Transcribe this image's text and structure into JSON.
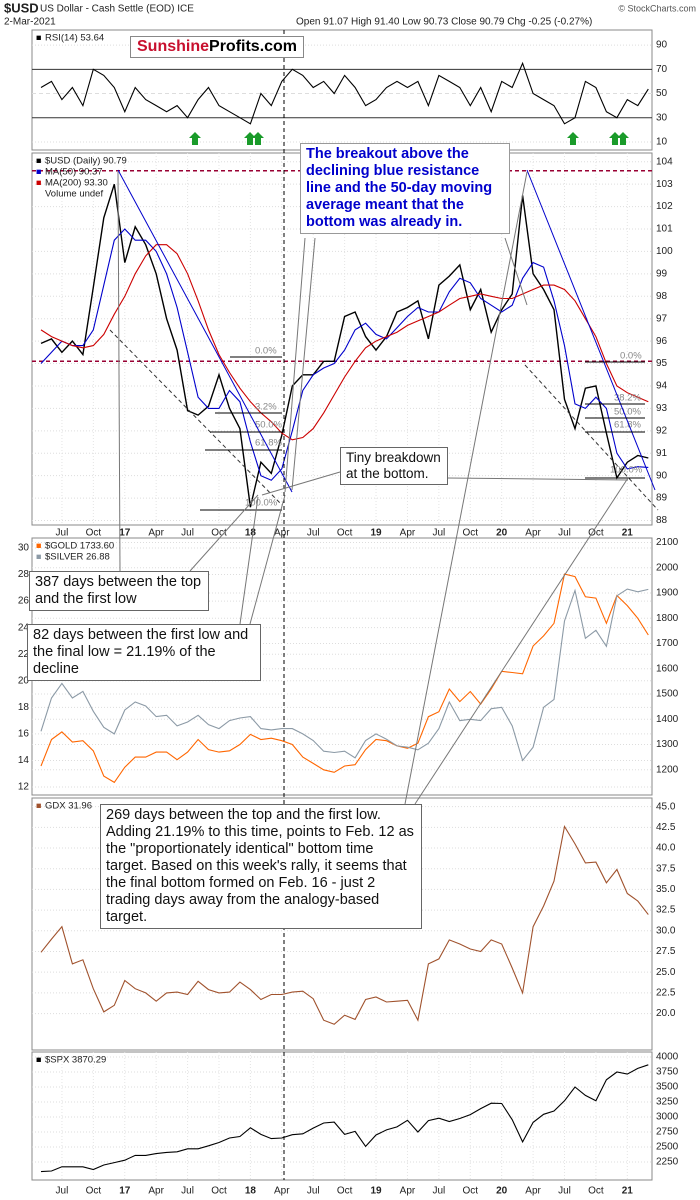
{
  "header": {
    "title": "$USD",
    "subtitle": "US Dollar - Cash Settle (EOD) ICE",
    "date": "2-Mar-2021",
    "quote": "Open 91.07 High 91.40 Low 90.73 Close 90.79 Chg -0.25 (-0.27%)",
    "source": "© StockCharts.com",
    "logo": [
      "Sunshine",
      "Profits.com"
    ]
  },
  "chart_data": [
    {
      "type": "line",
      "ylim": [
        5,
        100
      ],
      "yticks": [
        10,
        30,
        50,
        70,
        90
      ],
      "grid": true,
      "series": [
        {
          "name": "RSI(14) 53.64",
          "color": "#000000",
          "values": [
            55,
            60,
            45,
            55,
            40,
            70,
            65,
            55,
            35,
            55,
            45,
            40,
            35,
            40,
            30,
            45,
            55,
            40,
            35,
            30,
            25,
            50,
            40,
            60,
            70,
            65,
            55,
            60,
            50,
            65,
            55,
            40,
            45,
            55,
            60,
            55,
            60,
            40,
            65,
            60,
            55,
            40,
            55,
            35,
            60,
            55,
            75,
            50,
            45,
            40,
            25,
            30,
            60,
            55,
            35,
            30,
            45,
            40,
            53.64
          ]
        }
      ]
    },
    {
      "type": "line",
      "ylim": [
        87.8,
        104.3
      ],
      "yticks": [
        88,
        89,
        90,
        91,
        92,
        93,
        94,
        95,
        96,
        97,
        98,
        99,
        100,
        101,
        102,
        103,
        104
      ],
      "grid": true,
      "categories": [
        null,
        null,
        "Jul",
        null,
        null,
        "Oct",
        null,
        null,
        "17",
        null,
        null,
        "Apr",
        null,
        null,
        "Jul",
        null,
        null,
        "Oct",
        null,
        null,
        "18",
        null,
        null,
        "Apr",
        null,
        null,
        "Jul",
        null,
        null,
        "Oct",
        null,
        null,
        "19",
        null,
        null,
        "Apr",
        null,
        null,
        "Jul",
        null,
        null,
        "Oct",
        null,
        null,
        "20",
        null,
        null,
        "Apr",
        null,
        null,
        "Jul",
        null,
        null,
        "Oct",
        null,
        null,
        "21",
        null,
        null
      ],
      "legend_extra": "Volume undef",
      "reference_lines": [
        {
          "value": 103.6,
          "color": "#990033"
        },
        {
          "value": 95.1,
          "color": "#990033"
        }
      ],
      "fib_labels": [
        "0.0%",
        "3.2%",
        "50.0%",
        "61.8%",
        "100.0%",
        "0.0%",
        "38.2%",
        "50.0%",
        "61.8%",
        "100.0%"
      ],
      "series": [
        {
          "name": "$USD (Daily) 90.79",
          "color": "#000000",
          "values": [
            95.9,
            96.1,
            95.5,
            96.0,
            95.4,
            98.4,
            101.5,
            103.0,
            99.5,
            101.1,
            100.3,
            99.0,
            97.0,
            95.6,
            92.9,
            92.7,
            93.1,
            94.5,
            93.0,
            92.1,
            88.6,
            90.6,
            90.1,
            91.8,
            94.0,
            94.5,
            94.5,
            95.1,
            95.1,
            97.1,
            97.3,
            96.2,
            95.6,
            96.2,
            97.3,
            97.5,
            97.8,
            96.1,
            98.5,
            98.9,
            99.4,
            97.4,
            98.3,
            96.4,
            97.4,
            98.1,
            102.5,
            99.0,
            98.3,
            97.4,
            93.4,
            92.1,
            93.9,
            94.0,
            91.9,
            89.9,
            90.6,
            90.9,
            90.79
          ]
        },
        {
          "name": "MA(50) 90.37",
          "color": "#0000cc",
          "values": [
            95.0,
            95.5,
            96.0,
            95.8,
            95.8,
            96.5,
            98.5,
            100.5,
            101.0,
            100.5,
            100.5,
            100.0,
            99.0,
            97.5,
            95.5,
            93.5,
            93.0,
            93.0,
            93.8,
            93.3,
            91.5,
            90.0,
            89.8,
            90.3,
            92.0,
            93.8,
            94.5,
            94.8,
            95.0,
            95.6,
            96.5,
            96.8,
            96.3,
            96.1,
            96.6,
            97.1,
            97.5,
            97.3,
            97.3,
            98.2,
            98.8,
            98.6,
            97.9,
            97.6,
            97.3,
            97.6,
            98.8,
            99.5,
            99.3,
            97.8,
            95.8,
            93.2,
            93.0,
            93.5,
            93.0,
            91.0,
            90.3,
            90.4,
            90.37
          ]
        },
        {
          "name": "MA(200) 93.30",
          "color": "#cc0000",
          "values": [
            96.5,
            96.2,
            96.0,
            95.8,
            95.7,
            95.8,
            96.3,
            97.2,
            98.0,
            99.0,
            99.8,
            100.3,
            100.3,
            99.9,
            99.0,
            97.8,
            96.5,
            95.4,
            94.6,
            93.9,
            93.3,
            92.8,
            92.4,
            91.9,
            91.6,
            91.7,
            92.1,
            92.8,
            93.6,
            94.4,
            95.1,
            95.7,
            96.0,
            96.2,
            96.4,
            96.7,
            96.9,
            97.1,
            97.3,
            97.6,
            97.9,
            98.0,
            98.1,
            98.0,
            97.9,
            97.9,
            98.1,
            98.3,
            98.5,
            98.5,
            98.3,
            97.8,
            97.0,
            96.2,
            95.0,
            94.0,
            93.7,
            93.5,
            93.3
          ]
        }
      ]
    },
    {
      "type": "line",
      "ylim": [
        1100,
        2110
      ],
      "yticks": [
        1200,
        1300,
        1400,
        1500,
        1600,
        1700,
        1800,
        1900,
        2000,
        2100
      ],
      "y2lim": [
        11.4,
        30.6
      ],
      "y2ticks": [
        12,
        14,
        16,
        18,
        20,
        22,
        24,
        26,
        28,
        30
      ],
      "grid": true,
      "series": [
        {
          "name": "$GOLD 1733.60",
          "color": "#ff6600",
          "values": [
            1215,
            1320,
            1350,
            1310,
            1315,
            1275,
            1175,
            1150,
            1210,
            1250,
            1250,
            1270,
            1270,
            1240,
            1270,
            1320,
            1280,
            1270,
            1275,
            1300,
            1340,
            1320,
            1325,
            1315,
            1300,
            1250,
            1225,
            1200,
            1190,
            1215,
            1220,
            1280,
            1320,
            1315,
            1295,
            1285,
            1305,
            1410,
            1430,
            1520,
            1470,
            1510,
            1460,
            1520,
            1590,
            1585,
            1580,
            1690,
            1730,
            1780,
            1975,
            1965,
            1885,
            1880,
            1780,
            1890,
            1850,
            1800,
            1733.6
          ]
        },
        {
          "name": "$SILVER 26.88",
          "color": "#8c9aa6",
          "axis": "y2",
          "values": [
            16.2,
            18.7,
            19.8,
            18.7,
            19.2,
            17.7,
            16.5,
            16.0,
            17.8,
            18.4,
            18.1,
            17.3,
            17.4,
            16.6,
            16.9,
            17.4,
            16.7,
            16.4,
            17.0,
            17.2,
            17.3,
            16.4,
            16.3,
            16.4,
            16.4,
            16.0,
            15.5,
            14.7,
            14.6,
            14.7,
            14.2,
            15.5,
            16.0,
            15.6,
            15.1,
            15.0,
            14.8,
            15.3,
            16.4,
            18.4,
            17.0,
            17.1,
            17.0,
            17.9,
            18.0,
            16.6,
            14.0,
            15.0,
            18.0,
            18.6,
            24.5,
            26.8,
            23.2,
            23.8,
            22.6,
            26.4,
            26.9,
            26.7,
            26.88
          ]
        }
      ]
    },
    {
      "type": "line",
      "ylim": [
        15.6,
        45.8
      ],
      "yticks": [
        {
          "value": 20,
          "label": "20.0"
        },
        {
          "value": 22.5,
          "label": "22.5"
        },
        {
          "value": 25,
          "label": "25.0"
        },
        {
          "value": 27.5,
          "label": "27.5"
        },
        {
          "value": 30,
          "label": "30.0"
        },
        {
          "value": 32.5,
          "label": "32.5"
        },
        {
          "value": 35,
          "label": "35.0"
        },
        {
          "value": 37.5,
          "label": "37.5"
        },
        {
          "value": 40,
          "label": "40.0"
        },
        {
          "value": 42.5,
          "label": "42.5"
        },
        {
          "value": 45,
          "label": "45.0"
        }
      ],
      "grid": true,
      "series": [
        {
          "name": "GDX 31.96",
          "color": "#a0522d",
          "values": [
            27.4,
            29.0,
            30.5,
            26.0,
            26.5,
            23.0,
            20.2,
            21.0,
            24.0,
            23.0,
            22.5,
            21.5,
            22.5,
            22.6,
            22.3,
            23.9,
            22.9,
            22.5,
            22.6,
            23.8,
            22.9,
            21.7,
            22.3,
            22.3,
            22.6,
            22.7,
            21.8,
            19.2,
            18.7,
            19.8,
            19.3,
            21.7,
            22.0,
            21.4,
            21.5,
            21.6,
            19.2,
            26.0,
            26.6,
            28.9,
            28.4,
            27.8,
            27.5,
            28.9,
            28.4,
            25.5,
            22.5,
            30.5,
            33.0,
            36.0,
            42.6,
            40.5,
            38.2,
            38.3,
            35.8,
            37.4,
            34.5,
            33.6,
            31.96
          ]
        }
      ]
    },
    {
      "type": "line",
      "ylim": [
        1950,
        4083
      ],
      "yticks": [
        2250,
        2500,
        2750,
        3000,
        3250,
        3500,
        3750,
        4000
      ],
      "grid": true,
      "categories": [
        null,
        null,
        "Jul",
        null,
        null,
        "Oct",
        null,
        null,
        "17",
        null,
        null,
        "Apr",
        null,
        null,
        "Jul",
        null,
        null,
        "Oct",
        null,
        null,
        "18",
        null,
        null,
        "Apr",
        null,
        null,
        "Jul",
        null,
        null,
        "Oct",
        null,
        null,
        "19",
        null,
        null,
        "Apr",
        null,
        null,
        "Jul",
        null,
        null,
        "Oct",
        null,
        null,
        "20",
        null,
        null,
        "Apr",
        null,
        null,
        "Jul",
        null,
        null,
        "Oct",
        null,
        null,
        "21",
        null,
        null
      ],
      "series": [
        {
          "name": "$SPX 3870.29",
          "color": "#000000",
          "values": [
            2090,
            2100,
            2170,
            2170,
            2170,
            2125,
            2200,
            2240,
            2280,
            2360,
            2360,
            2390,
            2410,
            2420,
            2470,
            2470,
            2520,
            2575,
            2650,
            2675,
            2820,
            2710,
            2640,
            2650,
            2705,
            2720,
            2815,
            2900,
            2915,
            2710,
            2760,
            2510,
            2700,
            2785,
            2835,
            2945,
            2750,
            2940,
            2980,
            2925,
            2975,
            3040,
            3140,
            3230,
            3225,
            2955,
            2585,
            2910,
            3045,
            3100,
            3270,
            3500,
            3360,
            3270,
            3620,
            3750,
            3715,
            3810,
            3870.29
          ]
        }
      ]
    }
  ],
  "annotations": [
    "The breakout above the declining blue resistance line and the 50-day moving average meant that the bottom was already in.",
    "Tiny breakdown at the bottom.",
    "387 days between the top and the first low",
    "82 days between the first low and the final low = 21.19% of the decline",
    "269 days between the top and the first low. Adding 21.19% to this time, points to Feb. 12 as the \"proportionately identical\" bottom time target. Based on this week's rally, it seems that the final bottom formed on Feb. 16 - just 2 trading days away from the analogy-based target."
  ]
}
